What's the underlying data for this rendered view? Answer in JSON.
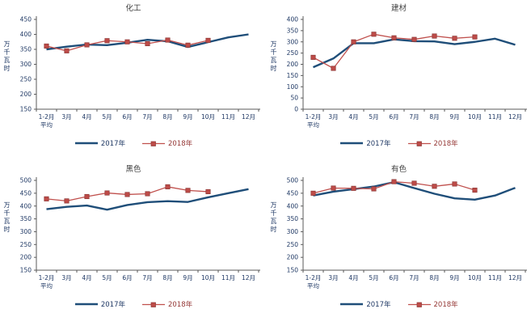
{
  "colors": {
    "background": "#FFFFFF",
    "series_2017": "#1F4E79",
    "series_2018_line": "#C0504D",
    "series_2018_marker_fill": "#BE4B48",
    "series_2018_marker_stroke": "#8C3836",
    "axis_text": "#1F3864",
    "chart_title_text": "#404040",
    "axis_line": "#595959",
    "legend_text_2017": "#1F3864",
    "legend_text_2018": "#943634"
  },
  "chart_data": [
    {
      "type": "line",
      "title": "化工",
      "ylabel": "万千瓦时",
      "categories": [
        "1-2月\n平均",
        "3月",
        "4月",
        "5月",
        "6月",
        "7月",
        "8月",
        "9月",
        "10月",
        "11月",
        "12月"
      ],
      "ylim": [
        150,
        450
      ],
      "ytick_step": 50,
      "grid": false,
      "legend_position": "bottom",
      "series": [
        {
          "name": "2017年",
          "values": [
            350,
            359,
            366,
            364,
            372,
            382,
            377,
            358,
            374,
            390,
            400
          ]
        },
        {
          "name": "2018年",
          "marker": "square",
          "values": [
            361,
            345,
            365,
            379,
            375,
            369,
            381,
            364,
            380
          ]
        }
      ]
    },
    {
      "type": "line",
      "title": "建材",
      "ylabel": "万千瓦时",
      "categories": [
        "1-2月\n平均",
        "3月",
        "4月",
        "5月",
        "6月",
        "7月",
        "8月",
        "9月",
        "10月",
        "11月",
        "12月"
      ],
      "ylim": [
        0,
        400
      ],
      "ytick_step": 50,
      "grid": false,
      "legend_position": "bottom",
      "series": [
        {
          "name": "2017年",
          "values": [
            187,
            226,
            294,
            294,
            311,
            303,
            302,
            290,
            300,
            314,
            287
          ]
        },
        {
          "name": "2018年",
          "marker": "square",
          "values": [
            231,
            182,
            300,
            334,
            318,
            311,
            326,
            316,
            322
          ]
        }
      ]
    },
    {
      "type": "line",
      "title": "黑色",
      "ylabel": "万千瓦时",
      "categories": [
        "1-2月\n平均",
        "3月",
        "4月",
        "5月",
        "6月",
        "7月",
        "8月",
        "9月",
        "10月",
        "11月",
        "12月"
      ],
      "ylim": [
        150,
        500
      ],
      "ytick_step": 50,
      "grid": false,
      "legend_position": "bottom",
      "series": [
        {
          "name": "2017年",
          "values": [
            388,
            397,
            402,
            386,
            404,
            415,
            419,
            416,
            434,
            450,
            466
          ]
        },
        {
          "name": "2018年",
          "marker": "square",
          "values": [
            428,
            420,
            437,
            451,
            445,
            448,
            475,
            461,
            456
          ]
        }
      ]
    },
    {
      "type": "line",
      "title": "有色",
      "ylabel": "万千瓦时",
      "categories": [
        "1-2月\n平均",
        "3月",
        "4月",
        "5月",
        "6月",
        "7月",
        "8月",
        "9月",
        "10月",
        "11月",
        "12月"
      ],
      "ylim": [
        150,
        500
      ],
      "ytick_step": 50,
      "grid": false,
      "legend_position": "bottom",
      "series": [
        {
          "name": "2017年",
          "values": [
            441,
            456,
            466,
            476,
            493,
            470,
            448,
            430,
            425,
            441,
            471
          ]
        },
        {
          "name": "2018年",
          "marker": "square",
          "values": [
            450,
            470,
            469,
            467,
            495,
            489,
            477,
            486,
            462
          ]
        }
      ]
    }
  ]
}
